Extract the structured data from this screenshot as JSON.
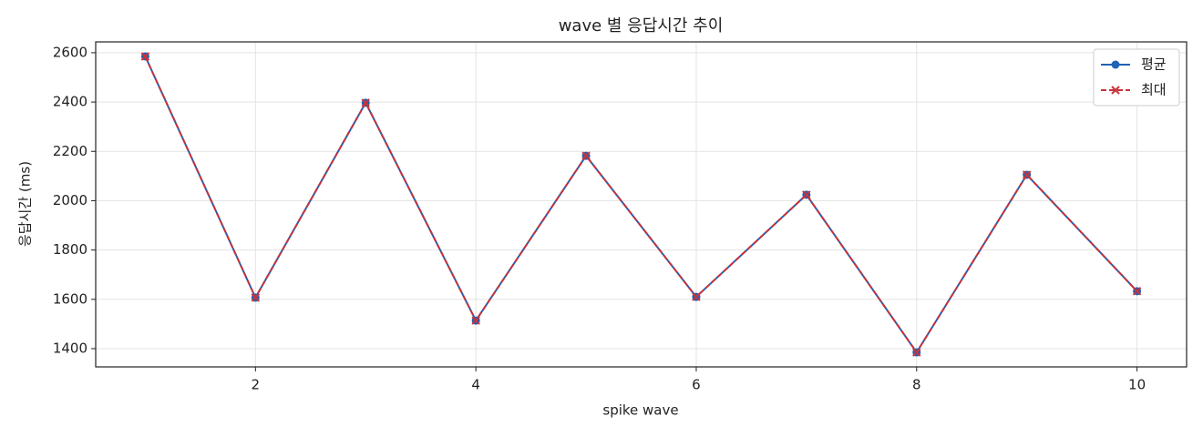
{
  "chart_data": {
    "type": "line",
    "title": "wave 별 응답시간 추이",
    "x_label": "spike wave",
    "y_label": "응답시간 (ms)",
    "x": [
      1,
      2,
      3,
      4,
      5,
      6,
      7,
      8,
      9,
      10
    ],
    "series": [
      {
        "name": "평균",
        "color": "#1f63b5",
        "marker": "circle",
        "linestyle": "solid",
        "values": [
          2585,
          1607,
          2397,
          1514,
          2182,
          1610,
          2024,
          1385,
          2105,
          1633
        ]
      },
      {
        "name": "최대",
        "color": "#c8333a",
        "marker": "x",
        "linestyle": "dashed",
        "values": [
          2585,
          1607,
          2397,
          1514,
          2182,
          1610,
          2024,
          1385,
          2105,
          1633
        ]
      }
    ],
    "xlim": [
      0.55,
      10.45
    ],
    "ylim": [
      1326,
      2644
    ],
    "xticks": [
      2,
      4,
      6,
      8,
      10
    ],
    "yticks": [
      1400,
      1600,
      1800,
      2000,
      2200,
      2400,
      2600
    ],
    "grid": true,
    "legend_position": "upper-right"
  }
}
